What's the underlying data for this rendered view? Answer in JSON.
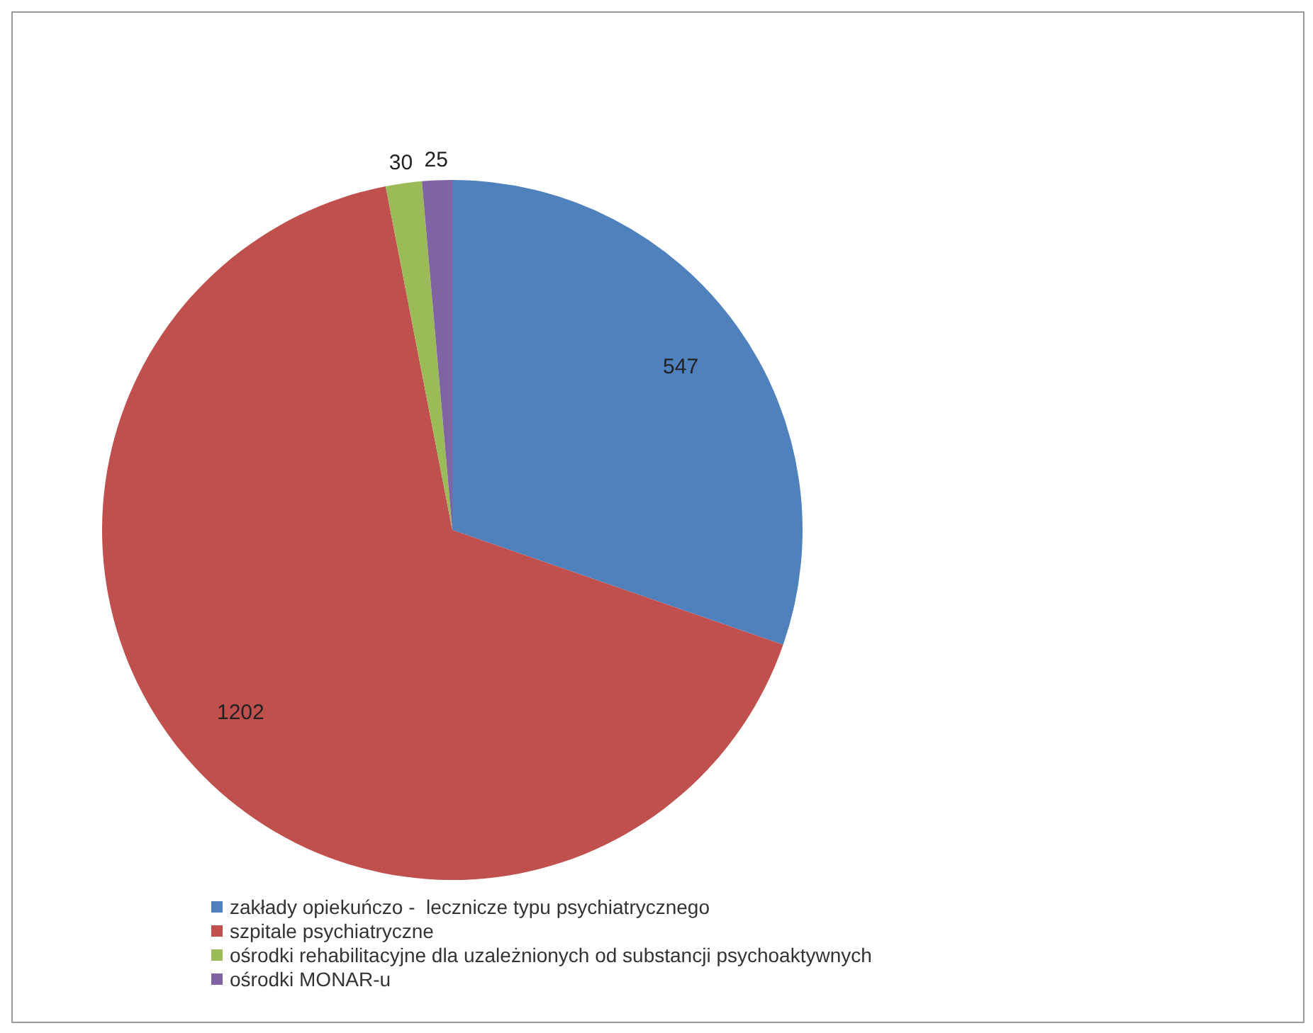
{
  "chart_data": {
    "type": "pie",
    "categories": [
      "zakłady opiekuńczo -  lecznicze typu psychiatrycznego",
      "szpitale psychiatryczne",
      "ośrodki rehabilitacyjne dla uzależnionych od substancji psychoaktywnych",
      "ośrodki MONAR-u"
    ],
    "values": [
      547,
      1202,
      30,
      25
    ],
    "colors": [
      "#4f81bd",
      "#c0504d",
      "#9bbb59",
      "#8064a2"
    ],
    "data_labels": true,
    "legend": "bottom"
  }
}
